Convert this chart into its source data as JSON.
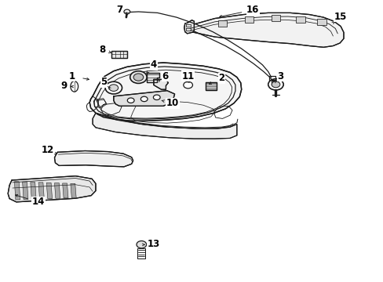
{
  "bg_color": "#ffffff",
  "line_color": "#1a1a1a",
  "lw": 0.9,
  "figsize": [
    4.89,
    3.6
  ],
  "dpi": 100,
  "parts": {
    "bumper_outer": {
      "x": [
        0.26,
        0.3,
        0.35,
        0.42,
        0.5,
        0.57,
        0.63,
        0.67,
        0.69,
        0.7,
        0.7,
        0.69,
        0.67,
        0.64,
        0.59,
        0.53,
        0.46,
        0.39,
        0.33,
        0.29,
        0.26,
        0.25,
        0.25,
        0.26
      ],
      "y": [
        0.3,
        0.25,
        0.22,
        0.2,
        0.2,
        0.21,
        0.23,
        0.26,
        0.29,
        0.33,
        0.38,
        0.42,
        0.46,
        0.49,
        0.52,
        0.54,
        0.56,
        0.57,
        0.56,
        0.54,
        0.5,
        0.44,
        0.37,
        0.3
      ]
    },
    "bumper_inner": {
      "x": [
        0.28,
        0.32,
        0.37,
        0.43,
        0.5,
        0.56,
        0.61,
        0.64,
        0.66,
        0.67,
        0.66,
        0.65,
        0.63,
        0.6,
        0.55,
        0.49,
        0.43,
        0.37,
        0.32,
        0.29,
        0.27,
        0.27,
        0.28
      ],
      "y": [
        0.32,
        0.27,
        0.24,
        0.23,
        0.23,
        0.24,
        0.26,
        0.28,
        0.31,
        0.35,
        0.39,
        0.42,
        0.45,
        0.48,
        0.51,
        0.53,
        0.54,
        0.54,
        0.52,
        0.49,
        0.45,
        0.39,
        0.32
      ]
    }
  },
  "label_fs": 8.5
}
